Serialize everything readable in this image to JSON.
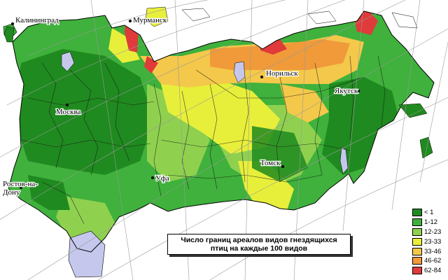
{
  "caption": {
    "line1": "Число границ ареалов видов гнездящихся",
    "line2": "птиц на каждые 100 видов"
  },
  "cities": [
    {
      "id": "kaliningrad",
      "label": "Калининград"
    },
    {
      "id": "murmansk",
      "label": "Мурманск"
    },
    {
      "id": "moskva",
      "label": "Москва"
    },
    {
      "id": "norilsk",
      "label": "Норильск"
    },
    {
      "id": "yakutsk",
      "label": "Якутск"
    },
    {
      "id": "tomsk",
      "label": "Томск"
    },
    {
      "id": "ufa",
      "label": "Уфа"
    },
    {
      "id": "rostov",
      "label_line1": "Ростов-на-",
      "label_line2": "Дону"
    }
  ],
  "legend": [
    {
      "label": "< 1",
      "color": "#1f8a1f"
    },
    {
      "label": "1-12",
      "color": "#3fb13c"
    },
    {
      "label": "12-23",
      "color": "#8fd14f"
    },
    {
      "label": "23-33",
      "color": "#e8ef3a"
    },
    {
      "label": "33-46",
      "color": "#f4c84a"
    },
    {
      "label": "46-62",
      "color": "#f09a3a"
    },
    {
      "label": "62-84",
      "color": "#e03a3a"
    }
  ],
  "colors": {
    "ocean": "#ffffff",
    "lake": "#c5c8ec",
    "outside": "#c5c8ec",
    "grid": "#9a9a9a",
    "border": "#000000"
  }
}
